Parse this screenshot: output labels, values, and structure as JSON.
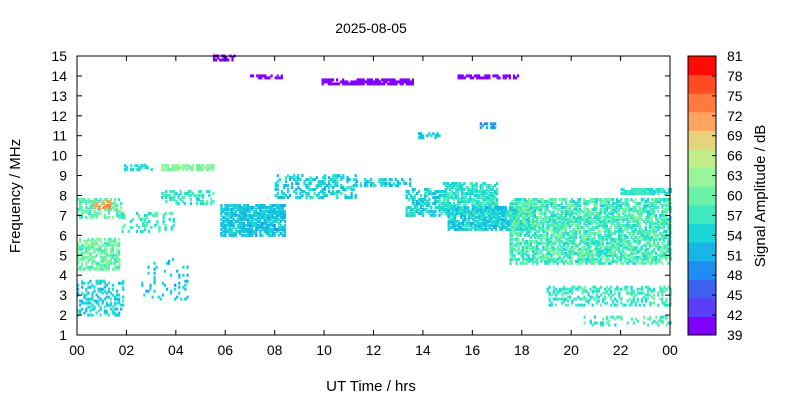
{
  "chart_data": {
    "type": "heatmap",
    "title": "2025-08-05",
    "xlabel": "UT Time / hrs",
    "ylabel": "Frequency / MHz",
    "colorbar_label": "Signal Amplitude / dB",
    "xlim": [
      0,
      24
    ],
    "ylim": [
      1,
      15
    ],
    "x_ticks": [
      "00",
      "02",
      "04",
      "06",
      "08",
      "10",
      "12",
      "14",
      "16",
      "18",
      "20",
      "22",
      "00"
    ],
    "y_ticks": [
      "1",
      "2",
      "3",
      "4",
      "5",
      "6",
      "7",
      "8",
      "9",
      "10",
      "11",
      "12",
      "13",
      "14",
      "15"
    ],
    "colorbar": {
      "min": 39,
      "max": 81,
      "step": 3,
      "ticks": [
        "39",
        "42",
        "45",
        "48",
        "51",
        "54",
        "57",
        "60",
        "63",
        "66",
        "69",
        "72",
        "75",
        "78",
        "81"
      ],
      "colors": [
        "#7f00ff",
        "#5a3df6",
        "#3e60ee",
        "#1e8ff0",
        "#17b6e6",
        "#1ad6d6",
        "#3ee8c0",
        "#6cf2a6",
        "#98f59a",
        "#c2ee8a",
        "#e6d47a",
        "#fda55e",
        "#ff7a3e",
        "#ff4a22",
        "#ff0a00"
      ]
    },
    "clusters": [
      {
        "t": [
          0.0,
          1.7
        ],
        "f": [
          4.3,
          5.8
        ],
        "level": 60,
        "density": 0.6,
        "spread": 3
      },
      {
        "t": [
          0.0,
          1.9
        ],
        "f": [
          2.0,
          3.8
        ],
        "level": 54,
        "density": 0.35,
        "spread": 3
      },
      {
        "t": [
          0.0,
          1.9
        ],
        "f": [
          6.9,
          7.8
        ],
        "level": 59,
        "density": 0.5,
        "spread": 3
      },
      {
        "t": [
          0.7,
          1.3
        ],
        "f": [
          7.4,
          7.7
        ],
        "level": 72,
        "density": 0.5,
        "spread": 2
      },
      {
        "t": [
          1.8,
          4.0
        ],
        "f": [
          6.2,
          7.1
        ],
        "level": 57,
        "density": 0.25,
        "spread": 3
      },
      {
        "t": [
          1.9,
          3.0
        ],
        "f": [
          9.3,
          9.5
        ],
        "level": 55,
        "density": 0.5,
        "spread": 2
      },
      {
        "t": [
          3.4,
          5.5
        ],
        "f": [
          9.3,
          9.5
        ],
        "level": 62,
        "density": 0.6,
        "spread": 2
      },
      {
        "t": [
          3.4,
          5.5
        ],
        "f": [
          7.6,
          8.2
        ],
        "level": 57,
        "density": 0.35,
        "spread": 3
      },
      {
        "t": [
          2.6,
          4.5
        ],
        "f": [
          2.8,
          4.8
        ],
        "level": 53,
        "density": 0.12,
        "spread": 3
      },
      {
        "t": [
          5.8,
          8.4
        ],
        "f": [
          6.0,
          7.5
        ],
        "level": 53,
        "density": 0.75,
        "spread": 3
      },
      {
        "t": [
          8.0,
          11.3
        ],
        "f": [
          7.9,
          9.0
        ],
        "level": 54,
        "density": 0.4,
        "spread": 3
      },
      {
        "t": [
          11.2,
          13.6
        ],
        "f": [
          8.5,
          8.8
        ],
        "level": 54,
        "density": 0.4,
        "spread": 3
      },
      {
        "t": [
          13.3,
          15.0
        ],
        "f": [
          7.0,
          8.3
        ],
        "level": 54,
        "density": 0.55,
        "spread": 3
      },
      {
        "t": [
          14.8,
          17.0
        ],
        "f": [
          7.0,
          8.6
        ],
        "level": 56,
        "density": 0.65,
        "spread": 3
      },
      {
        "t": [
          15.0,
          18.5
        ],
        "f": [
          6.3,
          7.4
        ],
        "level": 54,
        "density": 0.8,
        "spread": 3
      },
      {
        "t": [
          17.5,
          24.0
        ],
        "f": [
          4.6,
          7.8
        ],
        "level": 58,
        "density": 0.65,
        "spread": 4
      },
      {
        "t": [
          19.0,
          24.0
        ],
        "f": [
          2.5,
          3.5
        ],
        "level": 57,
        "density": 0.4,
        "spread": 3
      },
      {
        "t": [
          20.5,
          24.0
        ],
        "f": [
          1.5,
          2.0
        ],
        "level": 58,
        "density": 0.25,
        "spread": 3
      },
      {
        "t": [
          22.0,
          24.0
        ],
        "f": [
          8.1,
          8.3
        ],
        "level": 56,
        "density": 0.8,
        "spread": 2
      },
      {
        "t": [
          9.9,
          13.6
        ],
        "f": [
          13.6,
          13.8
        ],
        "level": 40,
        "density": 0.75,
        "spread": 1
      },
      {
        "t": [
          15.4,
          17.9
        ],
        "f": [
          13.9,
          14.0
        ],
        "level": 40,
        "density": 0.6,
        "spread": 1
      },
      {
        "t": [
          7.0,
          8.3
        ],
        "f": [
          13.9,
          14.0
        ],
        "level": 41,
        "density": 0.55,
        "spread": 1
      },
      {
        "t": [
          5.5,
          6.4
        ],
        "f": [
          14.8,
          15.0
        ],
        "level": 40,
        "density": 0.5,
        "spread": 1
      },
      {
        "t": [
          13.8,
          14.7
        ],
        "f": [
          10.9,
          11.1
        ],
        "level": 53,
        "density": 0.55,
        "spread": 2
      },
      {
        "t": [
          16.3,
          16.9
        ],
        "f": [
          11.4,
          11.6
        ],
        "level": 49,
        "density": 0.6,
        "spread": 2
      }
    ]
  }
}
